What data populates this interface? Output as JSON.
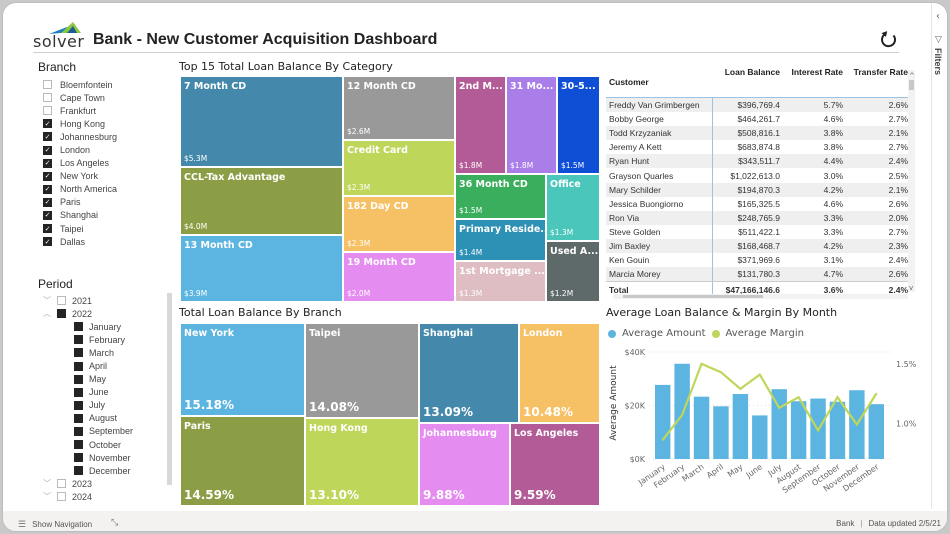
{
  "header": {
    "logo_text": "solver",
    "title": "Bank - New Customer Acquisition Dashboard"
  },
  "filters_pane": {
    "label": "Filters"
  },
  "branch_slicer": {
    "title": "Branch",
    "items": [
      {
        "label": "Bloemfontein",
        "checked": false
      },
      {
        "label": "Cape Town",
        "checked": false
      },
      {
        "label": "Frankfurt",
        "checked": false
      },
      {
        "label": "Hong Kong",
        "checked": true
      },
      {
        "label": "Johannesburg",
        "checked": true
      },
      {
        "label": "London",
        "checked": true
      },
      {
        "label": "Los Angeles",
        "checked": true
      },
      {
        "label": "New York",
        "checked": true
      },
      {
        "label": "North America",
        "checked": true
      },
      {
        "label": "Paris",
        "checked": true
      },
      {
        "label": "Shanghai",
        "checked": true
      },
      {
        "label": "Taipei",
        "checked": true
      },
      {
        "label": "Dallas",
        "checked": true
      }
    ]
  },
  "period_slicer": {
    "title": "Period",
    "items": [
      {
        "label": "2021",
        "level": "year",
        "expanded": false,
        "checked": false
      },
      {
        "label": "2022",
        "level": "year",
        "expanded": true,
        "checked": true
      },
      {
        "label": "January",
        "level": "month",
        "checked": true
      },
      {
        "label": "February",
        "level": "month",
        "checked": true
      },
      {
        "label": "March",
        "level": "month",
        "checked": true
      },
      {
        "label": "April",
        "level": "month",
        "checked": true
      },
      {
        "label": "May",
        "level": "month",
        "checked": true
      },
      {
        "label": "June",
        "level": "month",
        "checked": true
      },
      {
        "label": "July",
        "level": "month",
        "checked": true
      },
      {
        "label": "August",
        "level": "month",
        "checked": true
      },
      {
        "label": "September",
        "level": "month",
        "checked": true
      },
      {
        "label": "October",
        "level": "month",
        "checked": true
      },
      {
        "label": "November",
        "level": "month",
        "checked": true
      },
      {
        "label": "December",
        "level": "month",
        "checked": true
      },
      {
        "label": "2023",
        "level": "year",
        "expanded": false,
        "checked": false
      },
      {
        "label": "2024",
        "level": "year",
        "expanded": false,
        "checked": false
      }
    ]
  },
  "category_treemap": {
    "title": "Top 15 Total Loan Balance By Category",
    "tiles": [
      {
        "label": "7 Month CD",
        "value": "$5.3M",
        "color": "#4489AB"
      },
      {
        "label": "CCL-Tax Advantage",
        "value": "$4.0M",
        "color": "#8B9E45"
      },
      {
        "label": "13 Month CD",
        "value": "$3.9M",
        "color": "#5CB4E0"
      },
      {
        "label": "12 Month CD",
        "value": "$2.6M",
        "color": "#999999"
      },
      {
        "label": "Credit Card",
        "value": "$2.3M",
        "color": "#BED65A"
      },
      {
        "label": "182 Day CD",
        "value": "$2.3M",
        "color": "#F6C065"
      },
      {
        "label": "19 Month CD",
        "value": "$2.0M",
        "color": "#E58CF1"
      },
      {
        "label": "2nd M...",
        "value": "$1.8M",
        "color": "#B25B96"
      },
      {
        "label": "31 Mo...",
        "value": "$1.8M",
        "color": "#A97EE9"
      },
      {
        "label": "30-5...",
        "value": "$1.5M",
        "color": "#0F4FD6"
      },
      {
        "label": "36 Month CD",
        "value": "$1.5M",
        "color": "#3AAE5D"
      },
      {
        "label": "Office",
        "value": "$1.3M",
        "color": "#4AC6BB"
      },
      {
        "label": "Primary Reside...",
        "value": "$1.4M",
        "color": "#2D90B5"
      },
      {
        "label": "1st Mortgage ...",
        "value": "$1.3M",
        "color": "#DEBDC3"
      },
      {
        "label": "Used A...",
        "value": "$1.2M",
        "color": "#5E6A6A"
      }
    ]
  },
  "customer_table": {
    "columns": [
      "Customer",
      "Loan Balance",
      "Interest Rate",
      "Transfer Rate"
    ],
    "rows": [
      [
        "Freddy Van Grimbergen",
        "$396,769.4",
        "5.7%",
        "2.6%"
      ],
      [
        "Bobby George",
        "$464,261.7",
        "4.6%",
        "2.7%"
      ],
      [
        "Todd Krzyzaniak",
        "$508,816.1",
        "3.8%",
        "2.1%"
      ],
      [
        "Jeremy A Kett",
        "$683,874.8",
        "3.8%",
        "2.7%"
      ],
      [
        "Ryan Hunt",
        "$343,511.7",
        "4.4%",
        "2.4%"
      ],
      [
        "Grayson Quarles",
        "$1,022,613.0",
        "3.0%",
        "2.5%"
      ],
      [
        "Mary Schilder",
        "$194,870.3",
        "4.2%",
        "2.1%"
      ],
      [
        "Jessica Buongiorno",
        "$165,325.5",
        "4.6%",
        "2.6%"
      ],
      [
        "Ron Via",
        "$248,765.9",
        "3.3%",
        "2.0%"
      ],
      [
        "Steve Golden",
        "$511,422.1",
        "3.3%",
        "2.7%"
      ],
      [
        "Jim Baxley",
        "$168,468.7",
        "4.2%",
        "2.3%"
      ],
      [
        "Ken Gouin",
        "$371,969.6",
        "3.1%",
        "2.4%"
      ],
      [
        "Marcia Morey",
        "$131,780.3",
        "4.7%",
        "2.6%"
      ]
    ],
    "total": [
      "Total",
      "$47,166,146.6",
      "3.6%",
      "2.4%"
    ]
  },
  "branch_treemap": {
    "title": "Total Loan Balance By Branch",
    "tiles": [
      {
        "label": "New York",
        "value": "15.18%",
        "color": "#5CB4E0"
      },
      {
        "label": "Paris",
        "value": "14.59%",
        "color": "#8B9E45"
      },
      {
        "label": "Taipei",
        "value": "14.08%",
        "color": "#999999"
      },
      {
        "label": "Hong Kong",
        "value": "13.10%",
        "color": "#BED65A"
      },
      {
        "label": "Shanghai",
        "value": "13.09%",
        "color": "#4489AB"
      },
      {
        "label": "London",
        "value": "10.48%",
        "color": "#F6C065"
      },
      {
        "label": "Johannesburg",
        "value": "9.88%",
        "color": "#E58CF1"
      },
      {
        "label": "Los Angeles",
        "value": "9.59%",
        "color": "#B25B96"
      }
    ]
  },
  "chart_data": {
    "type": "bar",
    "title": "Average Loan Balance & Margin By Month",
    "categories": [
      "January",
      "February",
      "March",
      "April",
      "May",
      "June",
      "July",
      "August",
      "September",
      "October",
      "November",
      "December"
    ],
    "series": [
      {
        "name": "Average Amount",
        "type": "bar",
        "axis": "left",
        "color": "#5CB4E0",
        "values": [
          27700,
          35600,
          23300,
          19700,
          24300,
          16300,
          26100,
          21600,
          22600,
          21400,
          25700,
          20500
        ]
      },
      {
        "name": "Average Margin",
        "type": "line",
        "axis": "right",
        "color": "#BED65A",
        "values": [
          0.86,
          1.07,
          1.5,
          1.43,
          1.29,
          1.41,
          1.13,
          1.22,
          0.94,
          1.22,
          0.99,
          1.25
        ]
      }
    ],
    "ylabel": "Average Amount",
    "ylim": [
      0,
      40000
    ],
    "yticks": [
      "$0K",
      "$20K",
      "$40K"
    ],
    "y2lim": [
      0.7,
      1.6
    ],
    "y2ticks": [
      "1.0%",
      "1.5%"
    ],
    "legend": "top-left",
    "grid": true
  },
  "bottom_bar": {
    "show_navigation": "Show Navigation",
    "report_name": "Bank",
    "data_updated": "Data updated 2/5/21"
  }
}
